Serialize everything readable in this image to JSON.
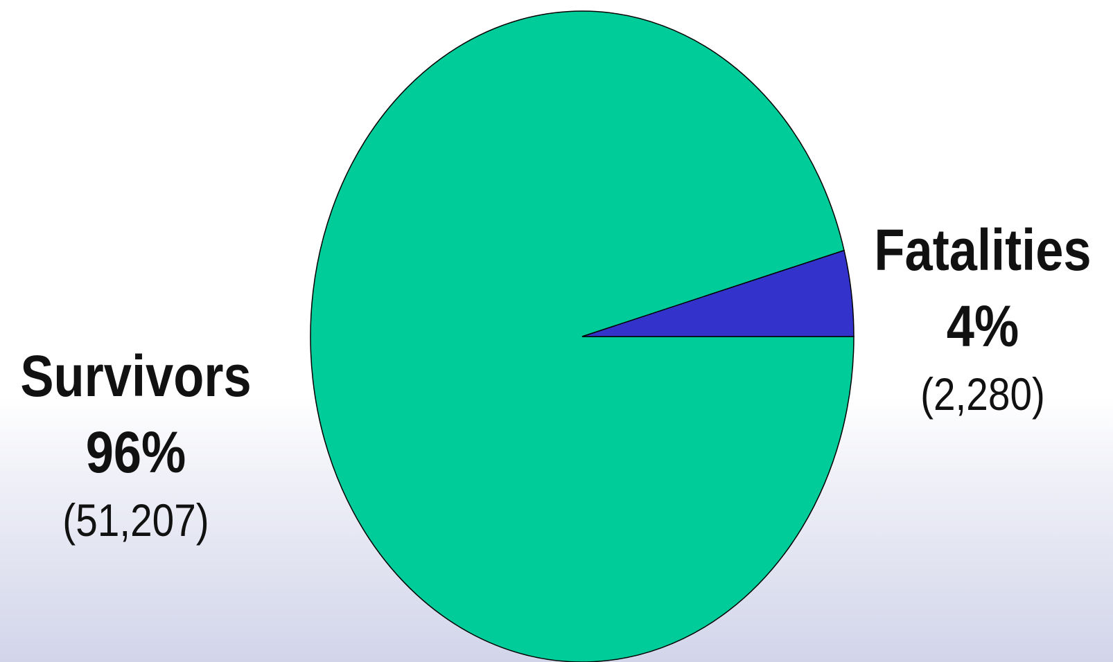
{
  "chart_data": {
    "type": "pie",
    "title": "",
    "slices": [
      {
        "label": "Survivors",
        "percent_label": "96%",
        "count_label": "(51,207)",
        "value": 51207,
        "color": "#00cc99"
      },
      {
        "label": "Fatalities",
        "percent_label": "4%",
        "count_label": "(2,280)",
        "value": 2280,
        "color": "#3333cc"
      }
    ],
    "outline_color": "#000000"
  }
}
